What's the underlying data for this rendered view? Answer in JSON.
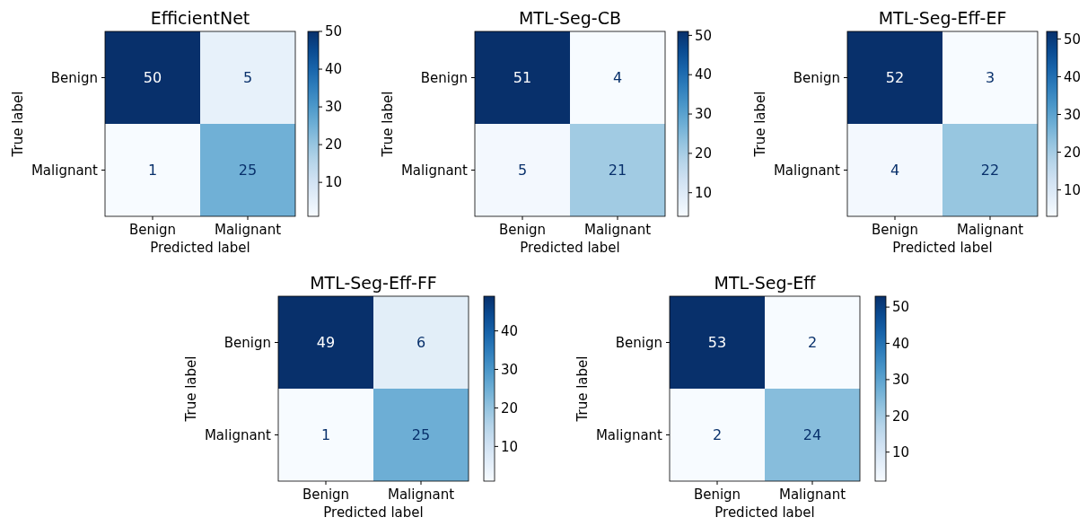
{
  "chart_data": [
    {
      "type": "heatmap",
      "title": "EfficientNet",
      "xlabel": "Predicted label",
      "ylabel": "True label",
      "categories": [
        "Benign",
        "Malignant"
      ],
      "y_categories": [
        "Benign",
        "Malignant"
      ],
      "cells": [
        [
          50,
          5
        ],
        [
          1,
          25
        ]
      ],
      "clim": [
        1,
        50
      ],
      "cticks": [
        10,
        20,
        30,
        40,
        50
      ],
      "data_labels": true
    },
    {
      "type": "heatmap",
      "title": "MTL-Seg-CB",
      "xlabel": "Predicted label",
      "ylabel": "True label",
      "categories": [
        "Benign",
        "Malignant"
      ],
      "y_categories": [
        "Benign",
        "Malignant"
      ],
      "cells": [
        [
          51,
          4
        ],
        [
          5,
          21
        ]
      ],
      "clim": [
        4,
        51
      ],
      "cticks": [
        10,
        20,
        30,
        40,
        50
      ],
      "data_labels": true
    },
    {
      "type": "heatmap",
      "title": "MTL-Seg-Eff-EF",
      "xlabel": "Predicted label",
      "ylabel": "True label",
      "categories": [
        "Benign",
        "Malignant"
      ],
      "y_categories": [
        "Benign",
        "Malignant"
      ],
      "cells": [
        [
          52,
          3
        ],
        [
          4,
          22
        ]
      ],
      "clim": [
        3,
        52
      ],
      "cticks": [
        10,
        20,
        30,
        40,
        50
      ],
      "data_labels": true
    },
    {
      "type": "heatmap",
      "title": "MTL-Seg-Eff-FF",
      "xlabel": "Predicted label",
      "ylabel": "True label",
      "categories": [
        "Benign",
        "Malignant"
      ],
      "y_categories": [
        "Benign",
        "Malignant"
      ],
      "cells": [
        [
          49,
          6
        ],
        [
          1,
          25
        ]
      ],
      "clim": [
        1,
        49
      ],
      "cticks": [
        10,
        20,
        30,
        40
      ],
      "data_labels": true
    },
    {
      "type": "heatmap",
      "title": "MTL-Seg-Eff",
      "xlabel": "Predicted label",
      "ylabel": "True label",
      "categories": [
        "Benign",
        "Malignant"
      ],
      "y_categories": [
        "Benign",
        "Malignant"
      ],
      "cells": [
        [
          53,
          2
        ],
        [
          2,
          24
        ]
      ],
      "clim": [
        2,
        53
      ],
      "cticks": [
        10,
        20,
        30,
        40,
        50
      ],
      "data_labels": true
    }
  ]
}
